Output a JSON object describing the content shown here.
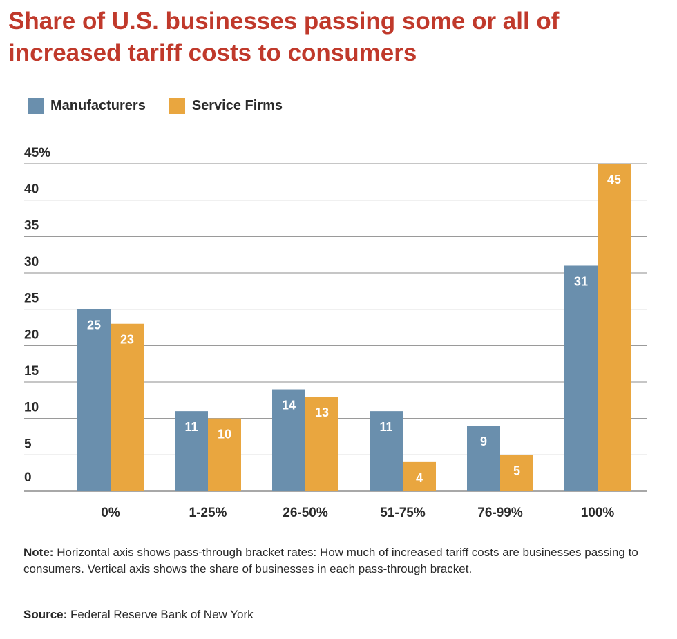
{
  "title": "Share of U.S. businesses passing some or all of increased tariff costs to consumers",
  "colors": {
    "title": "#c0392b",
    "manufacturers": "#6a8fad",
    "service": "#e9a63f",
    "grid": "#8c8c8c",
    "label_text": "#ffffff"
  },
  "legend": [
    {
      "label": "Manufacturers"
    },
    {
      "label": "Service Firms"
    }
  ],
  "chart_data": {
    "type": "bar",
    "title": "Share of U.S. businesses passing some or all of increased tariff costs to consumers",
    "categories": [
      "0%",
      "1-25%",
      "26-50%",
      "51-75%",
      "76-99%",
      "100%"
    ],
    "series": [
      {
        "name": "Manufacturers",
        "values": [
          25,
          11,
          14,
          11,
          9,
          31
        ]
      },
      {
        "name": "Service Firms",
        "values": [
          23,
          10,
          13,
          4,
          5,
          45
        ]
      }
    ],
    "yticks": [
      "0",
      "5",
      "10",
      "15",
      "20",
      "25",
      "30",
      "35",
      "40",
      "45%"
    ],
    "ylim": [
      0,
      45
    ],
    "xlabel": "",
    "ylabel": "",
    "grid": true,
    "legend_position": "top-left"
  },
  "note": {
    "label": "Note:",
    "text": "Horizontal axis shows pass-through bracket rates: How much of increased tariff costs are businesses passing to consumers. Vertical axis shows the share of businesses in each pass-through bracket."
  },
  "source": {
    "label": "Source:",
    "text": "Federal Reserve Bank of New York"
  }
}
